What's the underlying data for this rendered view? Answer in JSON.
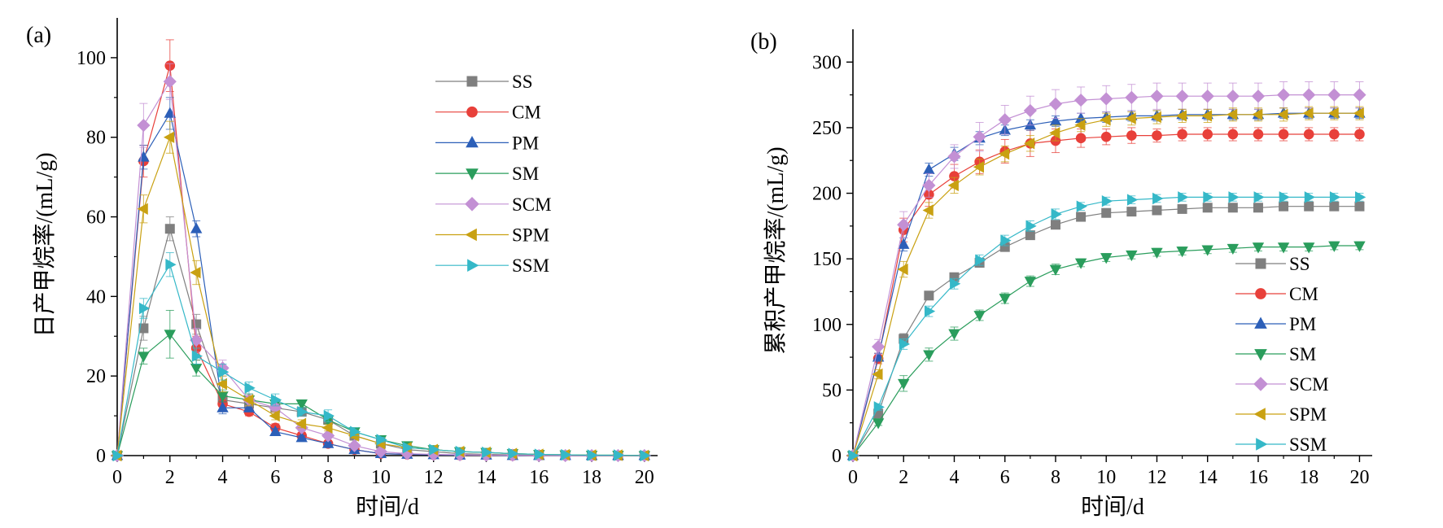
{
  "chart_data": [
    {
      "type": "line",
      "panel_label": "(a)",
      "xlabel": "时间/d",
      "ylabel": "日产甲烷率/(mL/g)",
      "xlim": [
        0,
        20.5
      ],
      "ylim": [
        0,
        110
      ],
      "xticks": [
        0,
        2,
        4,
        6,
        8,
        10,
        12,
        14,
        16,
        18,
        20
      ],
      "yticks": [
        0,
        20,
        40,
        60,
        80,
        100
      ],
      "legend_position": "top-right",
      "x": [
        0,
        1,
        2,
        3,
        4,
        5,
        6,
        7,
        8,
        9,
        10,
        11,
        12,
        13,
        14,
        15,
        16,
        17,
        18,
        19,
        20
      ],
      "series": [
        {
          "name": "SS",
          "color": "#7f7f7f",
          "marker": "square",
          "values": [
            0,
            32,
            57,
            33,
            14,
            13,
            12,
            11,
            9,
            5,
            3,
            1.5,
            1,
            0.5,
            0.3,
            0.2,
            0.1,
            0.1,
            0,
            0,
            0
          ],
          "err": [
            0,
            3,
            3,
            2.5,
            1.5,
            1,
            1,
            1,
            1,
            0.8,
            0.5,
            0.3,
            0.2,
            0.2,
            0.1,
            0.1,
            0,
            0,
            0,
            0,
            0
          ]
        },
        {
          "name": "CM",
          "color": "#e8403a",
          "marker": "circle",
          "values": [
            0,
            74,
            98,
            27,
            13,
            11,
            7,
            5,
            3,
            1.5,
            0.5,
            0.3,
            0.2,
            0.1,
            0.1,
            0,
            0,
            0,
            0,
            0,
            0
          ],
          "err": [
            0,
            4,
            6.5,
            3,
            1.5,
            1,
            1,
            0.8,
            0.5,
            0.3,
            0.2,
            0.1,
            0.1,
            0,
            0,
            0,
            0,
            0,
            0,
            0,
            0
          ]
        },
        {
          "name": "PM",
          "color": "#2c5fb8",
          "marker": "triangle-up",
          "values": [
            0,
            75,
            86,
            57,
            12,
            12,
            6,
            4.5,
            3,
            1.5,
            0.5,
            0.3,
            0.2,
            0.1,
            0.1,
            0,
            0,
            0,
            0,
            0,
            0
          ],
          "err": [
            0,
            3,
            4,
            2,
            1.5,
            1,
            0.8,
            0.5,
            0.4,
            0.3,
            0.2,
            0.1,
            0.1,
            0,
            0,
            0,
            0,
            0,
            0,
            0,
            0
          ]
        },
        {
          "name": "SM",
          "color": "#2a9d5c",
          "marker": "triangle-down",
          "values": [
            0,
            25,
            30.5,
            22,
            15,
            14,
            13,
            13,
            9,
            6,
            4,
            2.5,
            1.5,
            1,
            0.8,
            0.5,
            0.3,
            0.2,
            0.1,
            0.1,
            0
          ],
          "err": [
            0,
            2,
            6,
            2,
            1.5,
            1,
            1,
            1,
            1,
            0.8,
            0.6,
            0.4,
            0.3,
            0.2,
            0.1,
            0.1,
            0.1,
            0,
            0,
            0,
            0
          ]
        },
        {
          "name": "SCM",
          "color": "#c390d4",
          "marker": "diamond",
          "values": [
            0,
            83,
            94,
            29,
            22,
            14,
            12,
            7,
            5,
            2.5,
            1,
            0.5,
            0.3,
            0.2,
            0.1,
            0.1,
            0,
            0,
            0,
            0,
            0
          ],
          "err": [
            0,
            5.5,
            4.5,
            3,
            2,
            1.5,
            1,
            0.8,
            0.6,
            0.4,
            0.2,
            0.1,
            0.1,
            0,
            0,
            0,
            0,
            0,
            0,
            0,
            0
          ]
        },
        {
          "name": "SPM",
          "color": "#c9a112",
          "marker": "triangle-left",
          "values": [
            0,
            62,
            80,
            46,
            18,
            14,
            10,
            8,
            7,
            5,
            3,
            2,
            1.5,
            1,
            0.8,
            0.5,
            0.3,
            0.2,
            0.1,
            0.1,
            0
          ],
          "err": [
            0,
            3.5,
            4,
            3,
            2,
            1.5,
            1,
            1,
            0.8,
            0.6,
            0.4,
            0.3,
            0.2,
            0.2,
            0.1,
            0.1,
            0,
            0,
            0,
            0,
            0
          ]
        },
        {
          "name": "SSM",
          "color": "#35b8c8",
          "marker": "triangle-right",
          "values": [
            0,
            37,
            48,
            25,
            21,
            17,
            14,
            11,
            10,
            6,
            4,
            2,
            1.5,
            1,
            0.8,
            0.5,
            0.3,
            0.2,
            0.1,
            0.1,
            0
          ],
          "err": [
            0,
            2.5,
            3,
            2,
            2,
            1.5,
            1.5,
            1,
            1.5,
            1,
            0.6,
            0.4,
            0.3,
            0.2,
            0.1,
            0.1,
            0.1,
            0,
            0,
            0,
            0
          ]
        }
      ]
    },
    {
      "type": "line",
      "panel_label": "(b)",
      "xlabel": "时间/d",
      "ylabel": "累积产甲烷率/(mL/g)",
      "xlim": [
        0,
        20.5
      ],
      "ylim": [
        0,
        325
      ],
      "xticks": [
        0,
        2,
        4,
        6,
        8,
        10,
        12,
        14,
        16,
        18,
        20
      ],
      "yticks": [
        0,
        50,
        100,
        150,
        200,
        250,
        300
      ],
      "legend_position": "bottom-right",
      "x": [
        0,
        1,
        2,
        3,
        4,
        5,
        6,
        7,
        8,
        9,
        10,
        11,
        12,
        13,
        14,
        15,
        16,
        17,
        18,
        19,
        20
      ],
      "series": [
        {
          "name": "SS",
          "color": "#7f7f7f",
          "marker": "square",
          "values": [
            0,
            32,
            89,
            122,
            136,
            147,
            159,
            168,
            176,
            182,
            185,
            186,
            187,
            188,
            189,
            189,
            189,
            190,
            190,
            190,
            190
          ],
          "err": [
            0,
            3,
            4,
            3,
            3,
            3,
            3,
            3,
            3,
            2,
            2,
            2,
            2,
            2,
            2,
            2,
            2,
            2,
            2,
            2,
            2
          ]
        },
        {
          "name": "CM",
          "color": "#e8403a",
          "marker": "circle",
          "values": [
            0,
            74,
            172,
            199,
            213,
            224,
            232,
            238,
            240,
            242,
            243,
            244,
            244,
            245,
            245,
            245,
            245,
            245,
            245,
            245,
            245
          ],
          "err": [
            0,
            4,
            9,
            9,
            9,
            9,
            9,
            10,
            9,
            7,
            6,
            6,
            5,
            5,
            5,
            5,
            5,
            5,
            5,
            5,
            5
          ]
        },
        {
          "name": "PM",
          "color": "#2c5fb8",
          "marker": "triangle-up",
          "values": [
            0,
            75,
            161,
            218,
            230,
            242,
            248,
            252,
            255,
            257,
            258,
            259,
            259,
            260,
            260,
            260,
            260,
            261,
            261,
            261,
            261
          ],
          "err": [
            0,
            3,
            5,
            5,
            5,
            5,
            4,
            4,
            4,
            4,
            4,
            4,
            4,
            4,
            4,
            4,
            4,
            4,
            4,
            4,
            4
          ]
        },
        {
          "name": "SM",
          "color": "#2a9d5c",
          "marker": "triangle-down",
          "values": [
            0,
            25,
            55,
            77,
            93,
            107,
            120,
            133,
            142,
            147,
            151,
            153,
            155,
            156,
            157,
            158,
            159,
            159,
            159,
            160,
            160
          ],
          "err": [
            0,
            2,
            6,
            5,
            5,
            4,
            4,
            4,
            4,
            3,
            3,
            3,
            3,
            3,
            3,
            3,
            3,
            3,
            3,
            3,
            3
          ]
        },
        {
          "name": "SCM",
          "color": "#c390d4",
          "marker": "diamond",
          "values": [
            0,
            83,
            176,
            206,
            228,
            243,
            256,
            263,
            268,
            271,
            272,
            273,
            274,
            274,
            274,
            274,
            274,
            275,
            275,
            275,
            275
          ],
          "err": [
            0,
            5.5,
            10,
            9,
            9,
            11,
            11,
            11,
            11,
            10,
            10,
            10,
            10,
            10,
            10,
            10,
            10,
            10,
            10,
            10,
            10
          ]
        },
        {
          "name": "SPM",
          "color": "#c9a112",
          "marker": "triangle-left",
          "values": [
            0,
            62,
            142,
            187,
            206,
            220,
            230,
            238,
            246,
            252,
            256,
            257,
            258,
            259,
            259,
            260,
            260,
            260,
            261,
            261,
            261
          ],
          "err": [
            0,
            3.5,
            6,
            6,
            6,
            6,
            6,
            6,
            6,
            5,
            5,
            5,
            5,
            5,
            5,
            5,
            5,
            5,
            5,
            5,
            5
          ]
        },
        {
          "name": "SSM",
          "color": "#35b8c8",
          "marker": "triangle-right",
          "values": [
            0,
            37,
            85,
            110,
            131,
            149,
            164,
            175,
            184,
            190,
            194,
            195,
            196,
            197,
            197,
            197,
            197,
            197,
            197,
            197,
            197
          ],
          "err": [
            0,
            2.5,
            4,
            4,
            4,
            4,
            4,
            4,
            4,
            3,
            3,
            3,
            3,
            3,
            3,
            3,
            3,
            3,
            3,
            3,
            3
          ]
        }
      ]
    }
  ]
}
